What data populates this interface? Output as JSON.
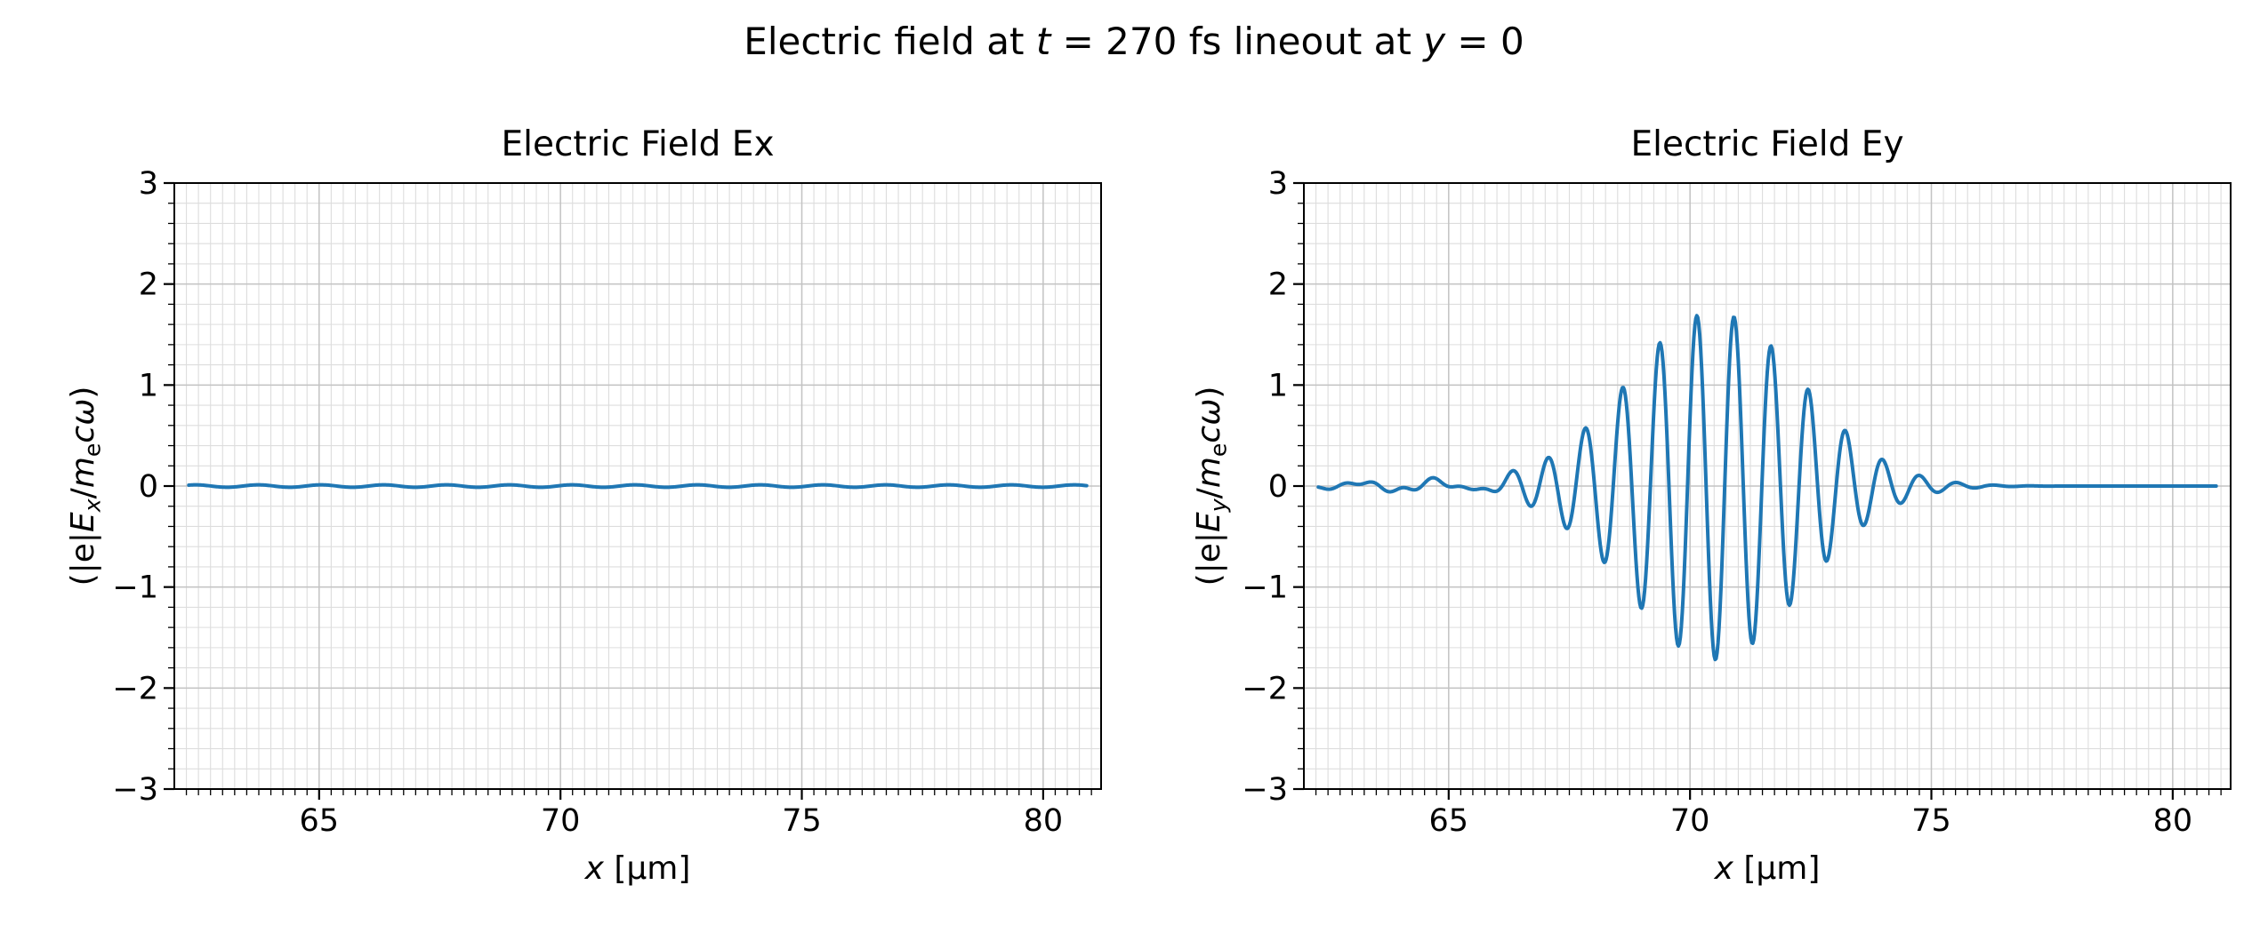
{
  "figure": {
    "title": "Electric field at t = 270 fs lineout at y = 0",
    "title_parts": [
      {
        "t": "Electric field at "
      },
      {
        "t": "t",
        "i": true
      },
      {
        "t": " = 270 fs lineout at "
      },
      {
        "t": "y",
        "i": true
      },
      {
        "t": " = 0"
      }
    ]
  },
  "style": {
    "background": "#ffffff",
    "text_color": "#000000",
    "frame_color": "#000000",
    "grid_major_color": "#c3c3c3",
    "grid_minor_color": "#dddddd",
    "line_color": "#1f77b4"
  },
  "chart_data": [
    {
      "type": "line",
      "title": "Electric Field Ex",
      "xlabel": "x [μm]",
      "ylabel": "(|e|E_x/m_e cω)",
      "xlabel_parts": [
        {
          "t": "x",
          "i": true
        },
        {
          "t": " [μm]"
        }
      ],
      "ylabel_parts": [
        {
          "t": "(|e|"
        },
        {
          "t": "E",
          "i": true
        },
        {
          "t": "x",
          "i": true,
          "sub": true
        },
        {
          "t": "/"
        },
        {
          "t": "m",
          "i": true
        },
        {
          "t": "e",
          "sub": true
        },
        {
          "t": "c",
          "i": true
        },
        {
          "t": "ω",
          "i": true
        },
        {
          "t": ")"
        }
      ],
      "xlim": [
        62.0,
        81.2
      ],
      "ylim": [
        -3,
        3
      ],
      "xticks": [
        65,
        70,
        75,
        80
      ],
      "xtick_labels": [
        "65",
        "70",
        "75",
        "80"
      ],
      "yticks": [
        -3,
        -2,
        -1,
        0,
        1,
        2,
        3
      ],
      "ytick_labels": [
        "−3",
        "−2",
        "−1",
        "0",
        "1",
        "2",
        "3"
      ],
      "x_minor_step": 0.25,
      "y_minor_step": 0.2,
      "grid": "major+minor",
      "line_color": "#1f77b4",
      "series": [
        {
          "name": "Ex",
          "description": "Essentially flat at 0 over the whole x range; no longitudinal field visible at this scale.",
          "generator": {
            "x_start": 62.3,
            "x_end": 80.9,
            "step": 0.02,
            "components": [
              {
                "amplitude": 0.012,
                "center": 70.0,
                "sigma": 60.0,
                "wavelength": 1.3,
                "phase": 0.4
              }
            ]
          }
        }
      ]
    },
    {
      "type": "line",
      "title": "Electric Field Ey",
      "xlabel": "x [μm]",
      "ylabel": "(|e|E_y/m_e cω)",
      "xlabel_parts": [
        {
          "t": "x",
          "i": true
        },
        {
          "t": " [μm]"
        }
      ],
      "ylabel_parts": [
        {
          "t": "(|e|"
        },
        {
          "t": "E",
          "i": true
        },
        {
          "t": "y",
          "i": true,
          "sub": true
        },
        {
          "t": "/"
        },
        {
          "t": "m",
          "i": true
        },
        {
          "t": "e",
          "sub": true
        },
        {
          "t": "c",
          "i": true
        },
        {
          "t": "ω",
          "i": true
        },
        {
          "t": ")"
        }
      ],
      "xlim": [
        62.0,
        81.2
      ],
      "ylim": [
        -3,
        3
      ],
      "xticks": [
        65,
        70,
        75,
        80
      ],
      "xtick_labels": [
        "65",
        "70",
        "75",
        "80"
      ],
      "yticks": [
        -3,
        -2,
        -1,
        0,
        1,
        2,
        3
      ],
      "ytick_labels": [
        "−3",
        "−2",
        "−1",
        "0",
        "1",
        "2",
        "3"
      ],
      "x_minor_step": 0.25,
      "y_minor_step": 0.2,
      "grid": "major+minor",
      "line_color": "#1f77b4",
      "series": [
        {
          "name": "Ey",
          "description": "Gaussian-envelope laser pulse: peak amplitude ≈ 1.7 at x ≈ 70.5 μm, envelope sigma ≈ 1.8 μm, oscillation wavelength ≈ 0.77 μm, visible oscillations from ≈ 66.5 to ≈ 74.5 μm; low-amplitude ripples (≈ ±0.05) for x ≲ 66.5 μm; flat ≈ 0 for x ≳ 75 μm.",
          "generator": {
            "x_start": 62.3,
            "x_end": 80.9,
            "step": 0.02,
            "components": [
              {
                "amplitude": 1.72,
                "center": 70.5,
                "sigma": 1.8,
                "wavelength": 0.77,
                "phase": 4.5
              },
              {
                "amplitude": 0.05,
                "center": 64.6,
                "sigma": 1.7,
                "wavelength": 1.6,
                "phase": 1.0
              },
              {
                "amplitude": 0.03,
                "center": 65.3,
                "sigma": 2.2,
                "wavelength": 0.6,
                "phase": 2.2
              }
            ]
          }
        }
      ]
    }
  ]
}
